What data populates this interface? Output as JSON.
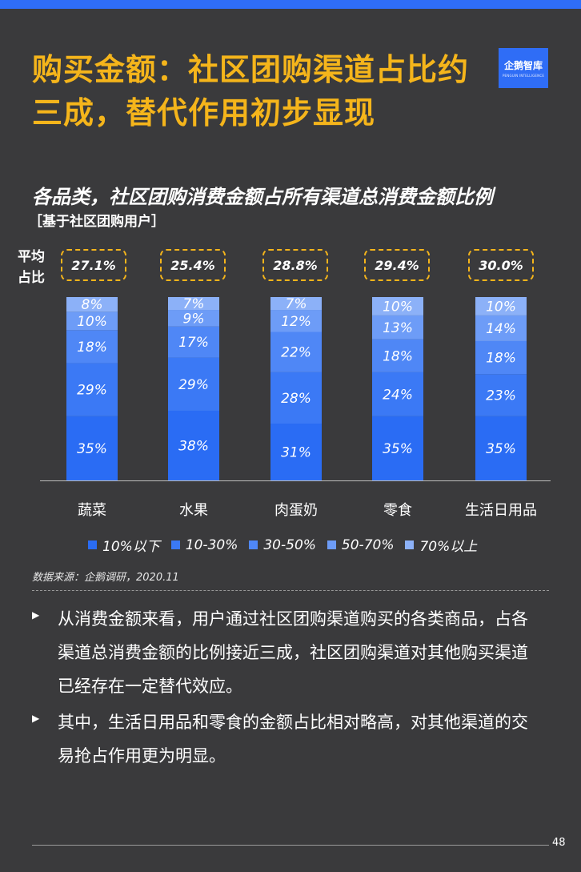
{
  "title": "购买金额：社区团购渠道占比约三成，替代作用初步显现",
  "logo": {
    "text": "企鹅智库",
    "subtext": "PENGUIN INTELLIGENCE"
  },
  "avg_label": "平均占比",
  "chart_data": {
    "type": "bar",
    "stacked": true,
    "title": "各品类，社区团购消费金额占所有渠道总消费金额比例",
    "subtitle": "［基于社区团购用户］",
    "categories": [
      "蔬菜",
      "水果",
      "肉蛋奶",
      "零食",
      "生活日用品"
    ],
    "averages": [
      "27.1%",
      "25.4%",
      "28.8%",
      "29.4%",
      "30.0%"
    ],
    "series": [
      {
        "name": "10%以下",
        "values": [
          35,
          38,
          31,
          35,
          35
        ],
        "color": "#2a6cf4"
      },
      {
        "name": "10-30%",
        "values": [
          29,
          29,
          28,
          24,
          23
        ],
        "color": "#3b79f5"
      },
      {
        "name": "30-50%",
        "values": [
          18,
          17,
          22,
          18,
          18
        ],
        "color": "#4f87f6"
      },
      {
        "name": "50-70%",
        "values": [
          10,
          9,
          12,
          13,
          14
        ],
        "color": "#6d9cf7"
      },
      {
        "name": "70%以上",
        "values": [
          8,
          7,
          7,
          10,
          10
        ],
        "color": "#8cb1f8"
      }
    ],
    "ylim": [
      0,
      100
    ],
    "legend_position": "bottom"
  },
  "source": "数据来源：企鹅调研，2020.11",
  "bullets": [
    "从消费金额来看，用户通过社区团购渠道购买的各类商品，占各渠道总消费金额的比例接近三成，社区团购渠道对其他购买渠道已经存在一定替代效应。",
    "其中，生活日用品和零食的金额占比相对略高，对其他渠道的交易抢占作用更为明显。"
  ],
  "page_number": "48"
}
